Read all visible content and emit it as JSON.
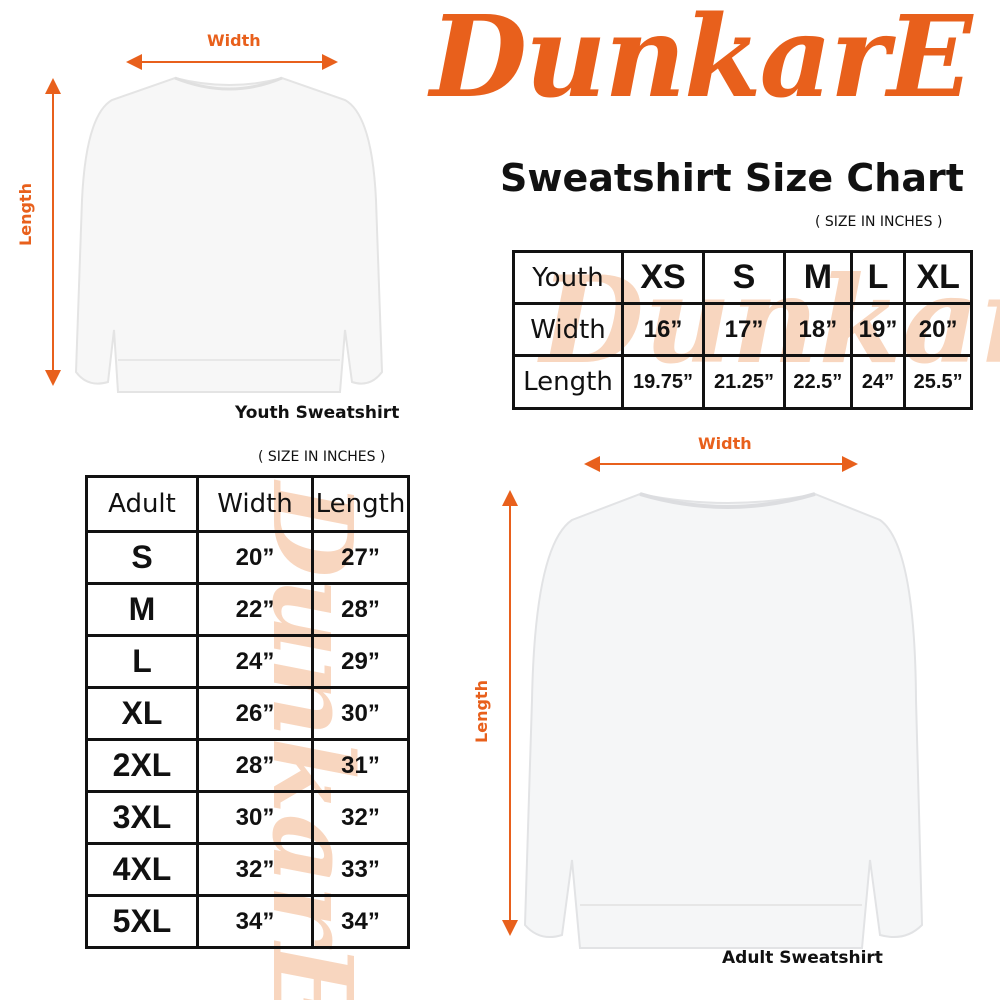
{
  "brand": {
    "logo_text": "DunkarE",
    "color": "#e8601c"
  },
  "title": "Sweatshirt Size Chart",
  "youth": {
    "note": "( SIZE IN INCHES )",
    "caption": "Youth Sweatshirt",
    "width_label": "Width",
    "length_label": "Length",
    "header": [
      "Youth",
      "XS",
      "S",
      "M",
      "L",
      "XL"
    ],
    "rows": [
      [
        "Width",
        "16”",
        "17”",
        "18”",
        "19”",
        "20”"
      ],
      [
        "Length",
        "19.75”",
        "21.25”",
        "22.5”",
        "24”",
        "25.5”"
      ]
    ]
  },
  "adult": {
    "note": "( SIZE IN INCHES )",
    "caption": "Adult Sweatshirt",
    "width_label": "Width",
    "length_label": "Length",
    "header": [
      "Adult",
      "Width",
      "Length"
    ],
    "rows": [
      [
        "S",
        "20”",
        "27”"
      ],
      [
        "M",
        "22”",
        "28”"
      ],
      [
        "L",
        "24”",
        "29”"
      ],
      [
        "XL",
        "26”",
        "30”"
      ],
      [
        "2XL",
        "28”",
        "31”"
      ],
      [
        "3XL",
        "30”",
        "32”"
      ],
      [
        "4XL",
        "32”",
        "33”"
      ],
      [
        "5XL",
        "34”",
        "34”"
      ]
    ]
  }
}
